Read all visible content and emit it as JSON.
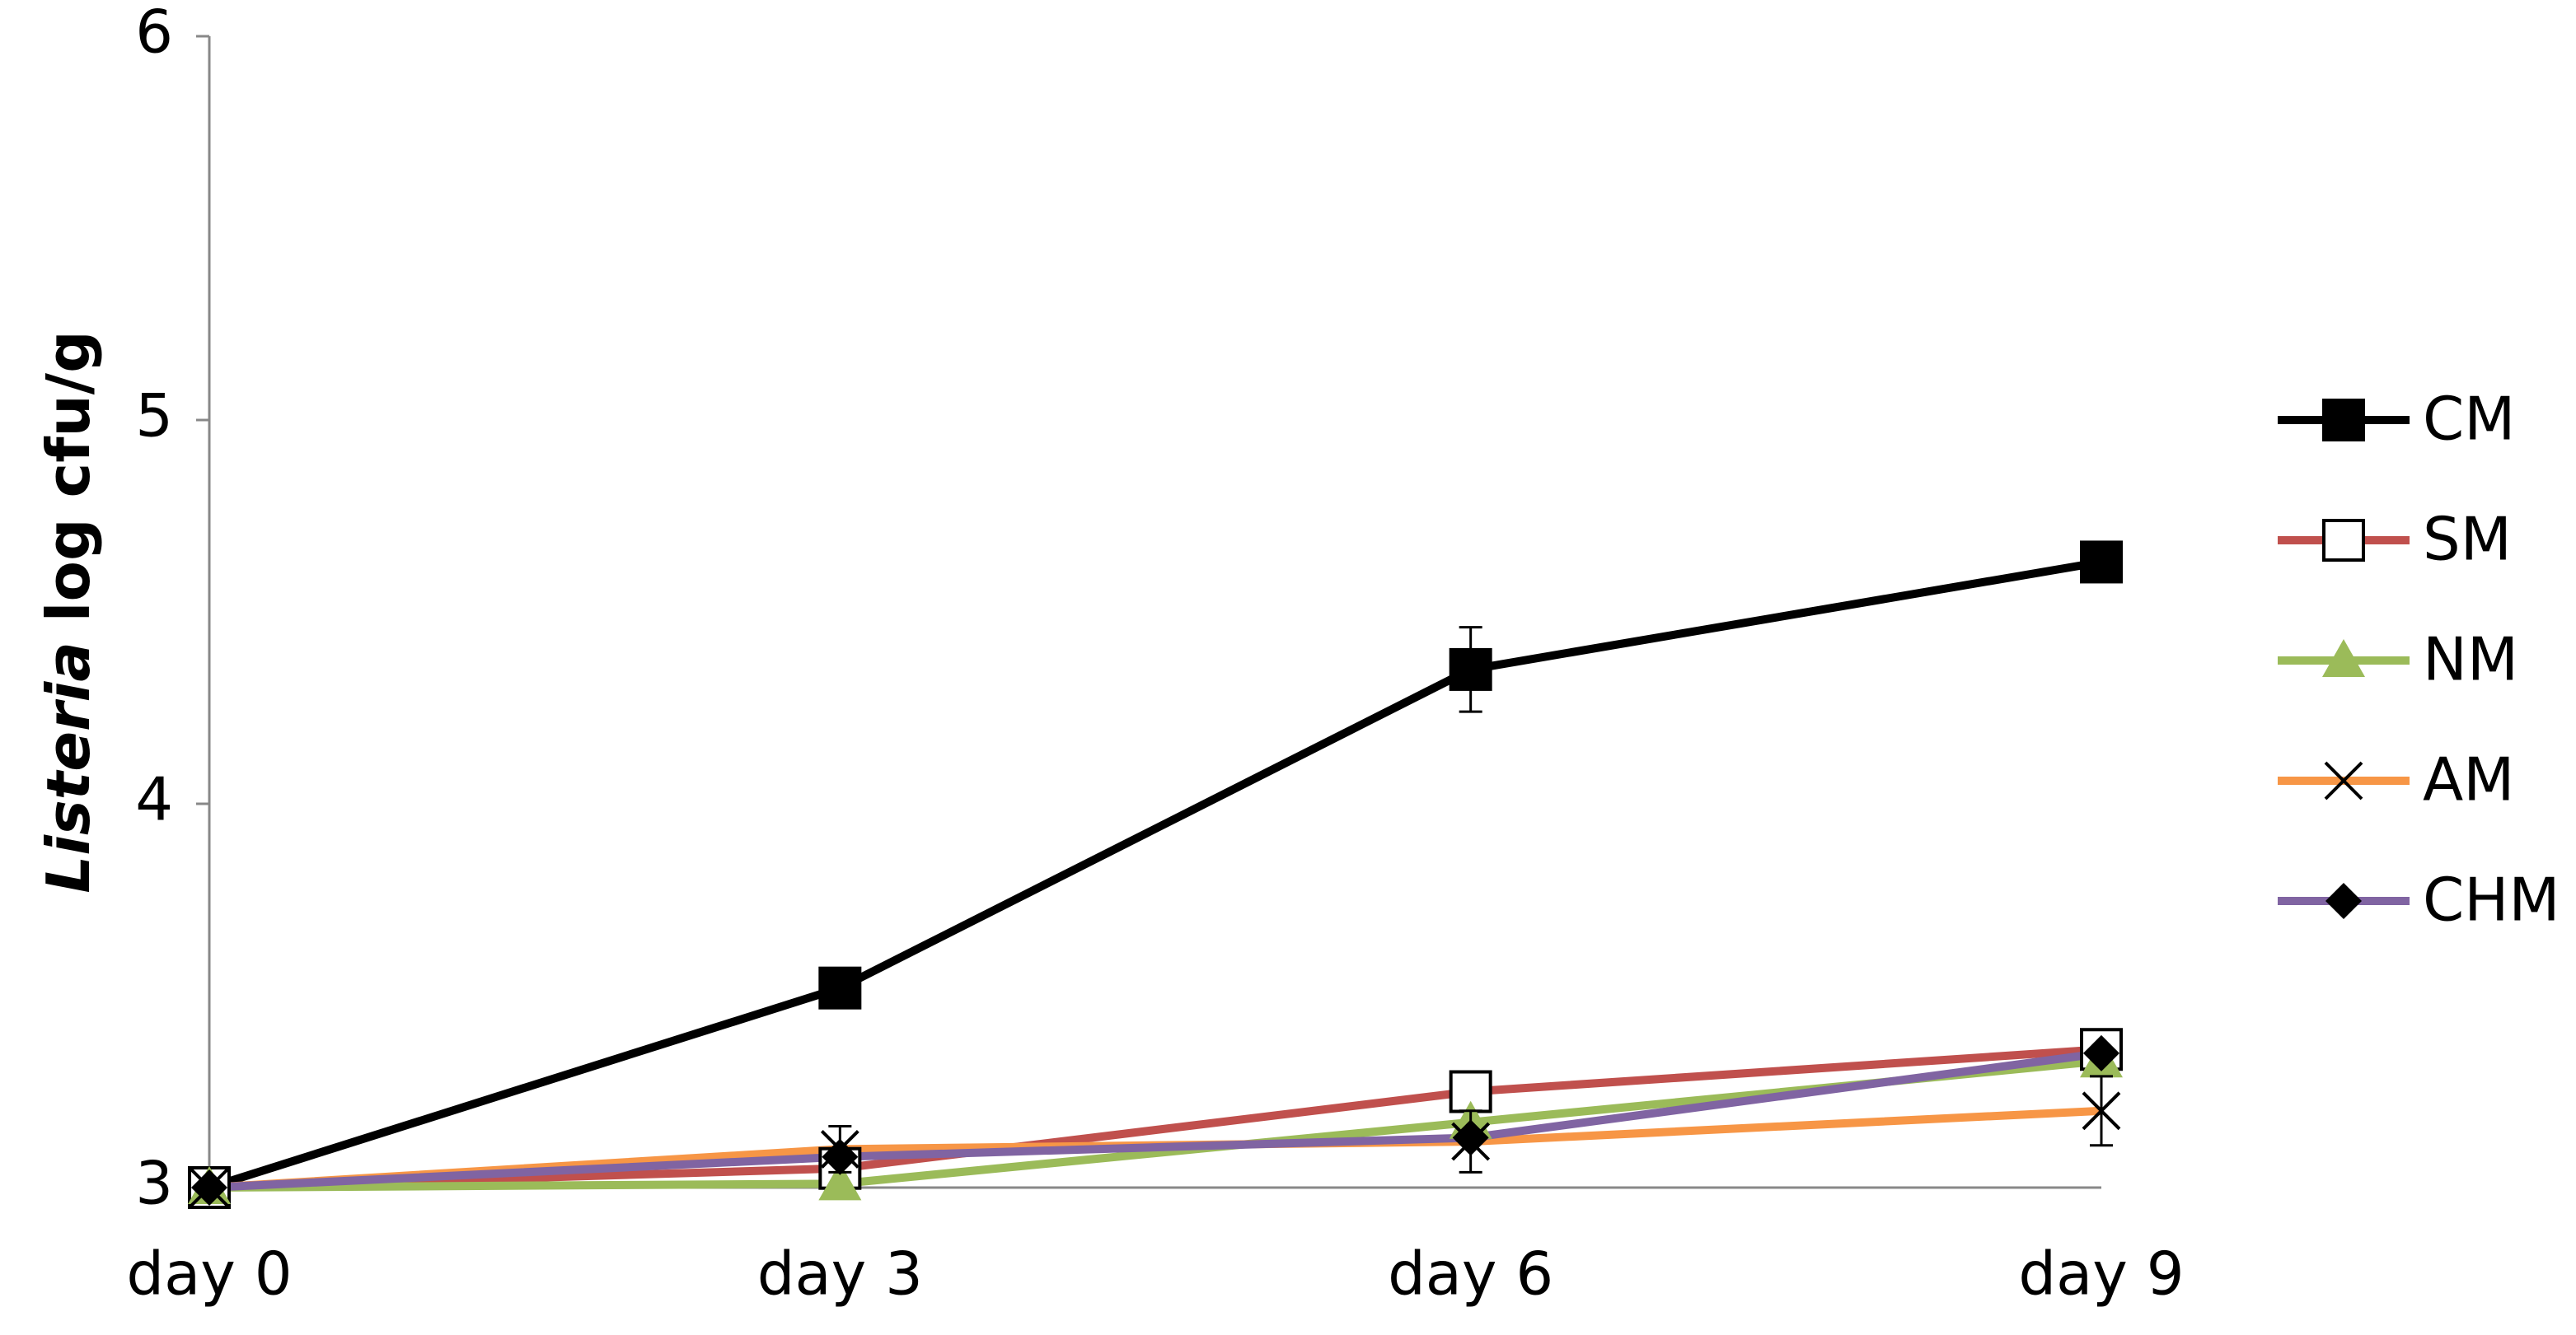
{
  "chart_data": {
    "type": "line",
    "y_label_parts": [
      "Listeria",
      "log cfu/g"
    ],
    "categories": [
      "day 0",
      "day 3",
      "day 6",
      "day 9"
    ],
    "ylim": [
      3,
      6
    ],
    "yticks": [
      3,
      4,
      5,
      6
    ],
    "legend": "right",
    "series": [
      {
        "name": "CM",
        "color": "#000000",
        "marker": "square-filled",
        "values": [
          3.0,
          3.52,
          4.35,
          4.63
        ],
        "errors": [
          0.01,
          0.04,
          0.11,
          0.03
        ]
      },
      {
        "name": "SM",
        "color": "#c0504d",
        "marker": "square-open",
        "values": [
          3.0,
          3.05,
          3.25,
          3.36
        ]
      },
      {
        "name": "NM",
        "color": "#9bbb59",
        "marker": "triangle",
        "values": [
          3.0,
          3.01,
          3.17,
          3.33
        ]
      },
      {
        "name": "AM",
        "color": "#f79646",
        "marker": "x",
        "values": [
          3.0,
          3.1,
          3.12,
          3.2
        ],
        "errors": [
          0.01,
          0.06,
          0.08,
          0.09
        ]
      },
      {
        "name": "CHM",
        "color": "#8064a2",
        "marker": "diamond",
        "values": [
          3.0,
          3.08,
          3.13,
          3.35
        ]
      }
    ]
  }
}
